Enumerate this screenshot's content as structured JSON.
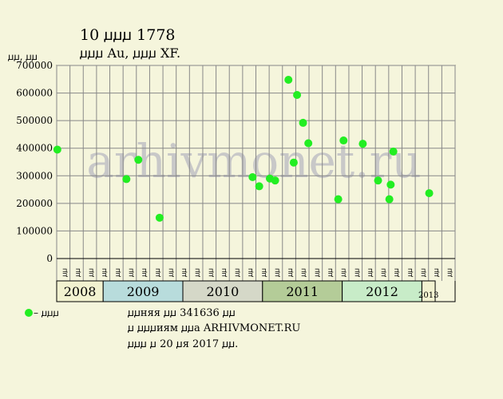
{
  "title_line1": "10 ꙡꙡꙡ 1778",
  "title_line2": "ꙡꙡꙡ  Au, ꙡꙡꙡ  XF.",
  "y_unit_label": "ꙡꙡ, ꙡꙡ",
  "watermark": "arhivmonet.ru",
  "legend": {
    "label": " – ꙡꙡꙡ",
    "marker_color": "#22ee22"
  },
  "footer": {
    "line1": "ꙡꙡняя ꙡꙡ 341636 ꙡꙡ",
    "line2": "ꙡ ꙡꙡꙡиям ꙡꙡа ARHIVMONET.RU",
    "line3": "ꙡꙡꙡ ꙡ 20 ꙡя 2017 ꙡꙡ."
  },
  "colors": {
    "background": "#f5f5dc",
    "plot_area": "#f5f5dc",
    "grid": "#888888",
    "point": "#22ee22",
    "watermark": "#c8c8c8"
  },
  "chart_data": {
    "type": "scatter",
    "ylim": [
      0,
      700000
    ],
    "yticks": [
      0,
      100000,
      200000,
      300000,
      400000,
      500000,
      600000,
      700000
    ],
    "ytick_labels": [
      "0",
      "100000",
      "200000",
      "300000",
      "400000",
      "500000",
      "600000",
      "700000"
    ],
    "grid": true,
    "legend_position": "bottom-left",
    "month_labels": [
      "ꙡꙡ",
      "ꙡꙡ",
      "ꙡꙡ",
      "ꙡꙡ",
      "ꙡꙡ",
      "ꙡꙡ",
      "ꙡꙡ",
      "ꙡꙡ",
      "ꙡꙡ",
      "ꙡꙡ",
      "ꙡꙡ",
      "ꙡꙡ",
      "ꙡꙡ",
      "ꙡꙡ",
      "ꙡꙡ",
      "ꙡꙡ",
      "ꙡꙡ",
      "ꙡꙡ",
      "ꙡꙡ",
      "ꙡꙡ",
      "ꙡꙡ",
      "ꙡꙡ",
      "ꙡꙡ",
      "ꙡꙡ",
      "ꙡꙡ",
      "ꙡꙡ",
      "ꙡꙡ",
      "ꙡꙡ",
      "ꙡꙡ",
      "ꙡꙡ"
    ],
    "years": [
      {
        "label": "2008",
        "start": 0,
        "end": 3.5,
        "color": "#f2f2d0"
      },
      {
        "label": "2009",
        "start": 3.5,
        "end": 9.5,
        "color": "#b8dcdc"
      },
      {
        "label": "2010",
        "start": 9.5,
        "end": 15.5,
        "color": "#d5d8c8"
      },
      {
        "label": "2011",
        "start": 15.5,
        "end": 21.5,
        "color": "#b4cc98"
      },
      {
        "label": "2012",
        "start": 21.5,
        "end": 27.5,
        "color": "#c8ecc8"
      },
      {
        "label": "2013",
        "start": 27.5,
        "end": 28.5,
        "color": "#f2f2d0"
      }
    ],
    "series": [
      {
        "points": [
          {
            "x": 0.05,
            "y": 395000
          },
          {
            "x": 5.25,
            "y": 288000
          },
          {
            "x": 6.15,
            "y": 358000
          },
          {
            "x": 7.75,
            "y": 148000
          },
          {
            "x": 14.75,
            "y": 295000
          },
          {
            "x": 15.25,
            "y": 262000
          },
          {
            "x": 16.05,
            "y": 290000
          },
          {
            "x": 16.45,
            "y": 283000
          },
          {
            "x": 17.45,
            "y": 648000
          },
          {
            "x": 17.85,
            "y": 348000
          },
          {
            "x": 18.1,
            "y": 593000
          },
          {
            "x": 18.55,
            "y": 492000
          },
          {
            "x": 18.95,
            "y": 418000
          },
          {
            "x": 21.2,
            "y": 215000
          },
          {
            "x": 21.6,
            "y": 428000
          },
          {
            "x": 23.05,
            "y": 416000
          },
          {
            "x": 24.2,
            "y": 283000
          },
          {
            "x": 25.05,
            "y": 215000
          },
          {
            "x": 25.15,
            "y": 268000
          },
          {
            "x": 25.35,
            "y": 388000
          },
          {
            "x": 28.05,
            "y": 237000
          }
        ]
      }
    ]
  }
}
